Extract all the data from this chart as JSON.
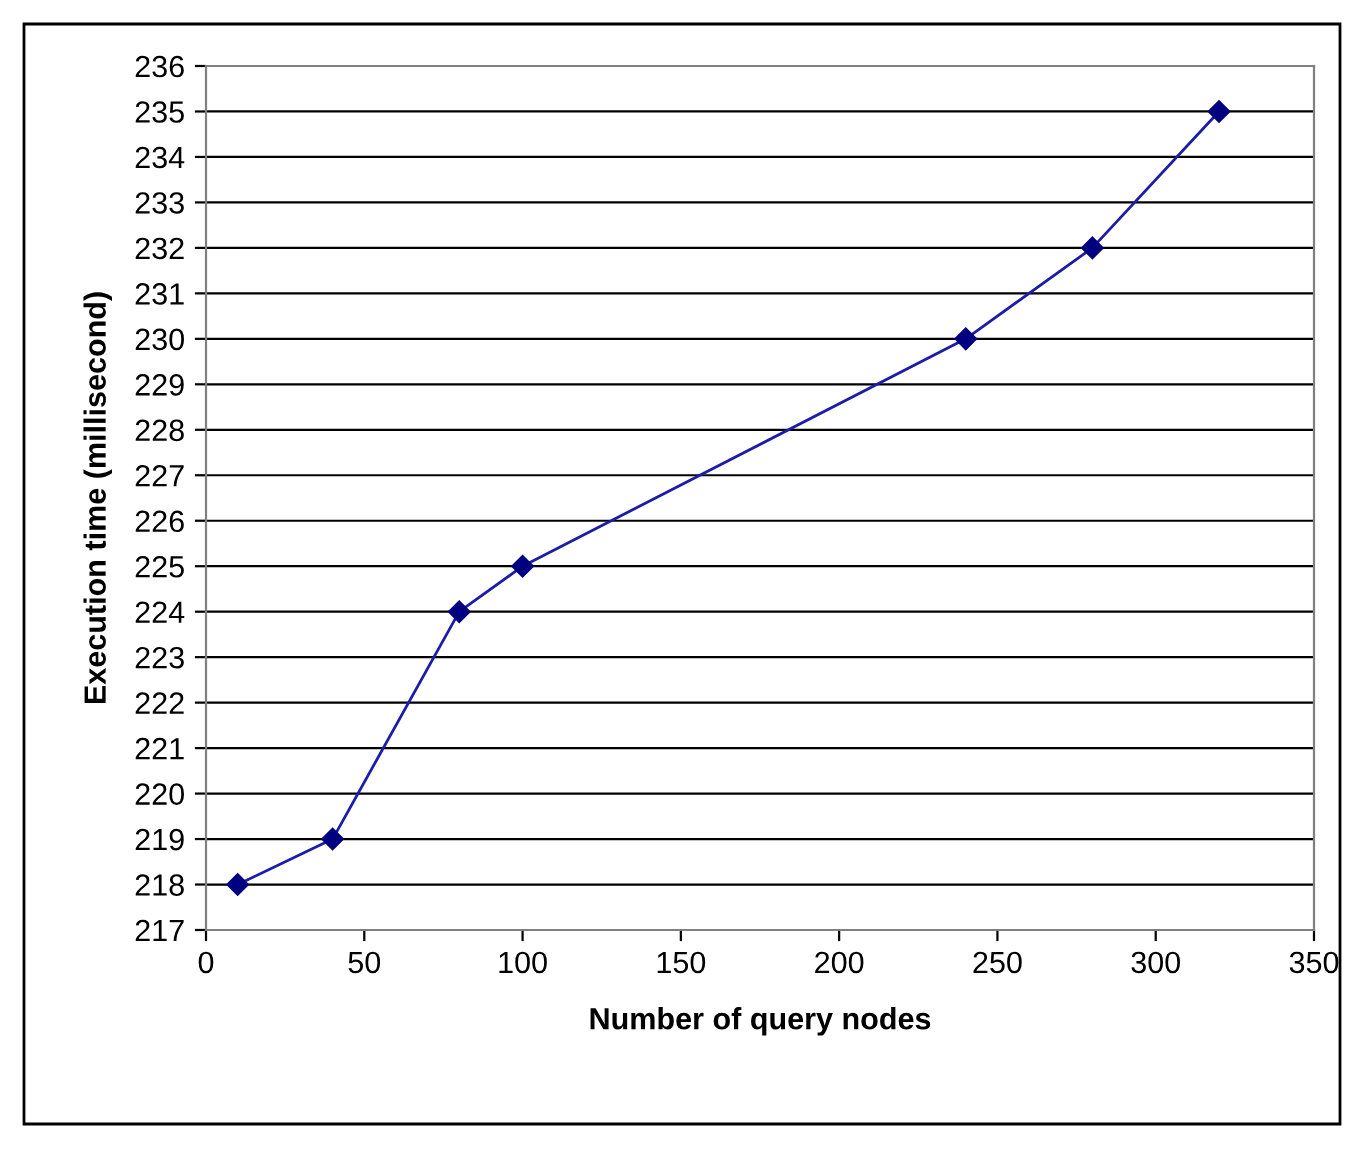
{
  "chart_data": {
    "type": "line",
    "xlabel": "Number of query nodes",
    "ylabel": "Execution time (millisecond)",
    "x": [
      10,
      40,
      80,
      100,
      240,
      280,
      320
    ],
    "series": [
      {
        "color": "#1c1ca8",
        "values": [
          218,
          219,
          224,
          225,
          230,
          232,
          235
        ]
      }
    ],
    "xlim": [
      0,
      350
    ],
    "xticks": [
      0,
      50,
      100,
      150,
      200,
      250,
      300,
      350
    ],
    "ylim": [
      217,
      236
    ],
    "yticks": [
      217,
      218,
      219,
      220,
      221,
      222,
      223,
      224,
      225,
      226,
      227,
      228,
      229,
      230,
      231,
      232,
      233,
      234,
      235,
      236
    ],
    "grid": "y",
    "marker": "diamond",
    "line_style": "solid"
  }
}
